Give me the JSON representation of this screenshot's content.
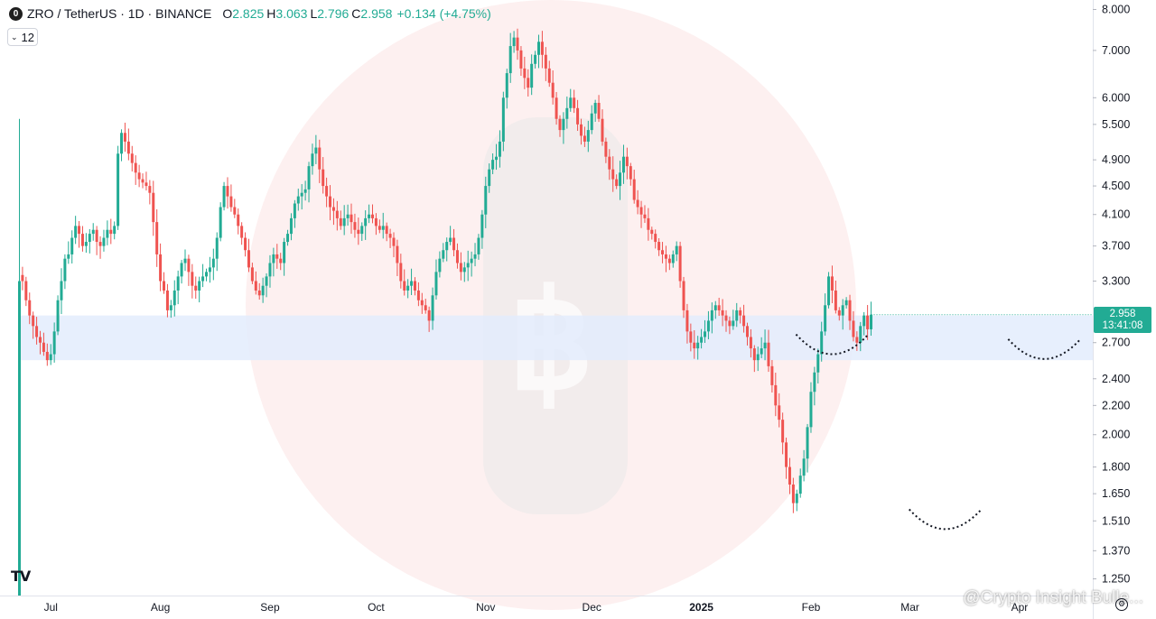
{
  "header": {
    "logo_icon": "zro-logo-icon",
    "title": "ZRO / TetherUS · 1D · BINANCE",
    "ohlc": [
      {
        "label": "O",
        "value": "2.825"
      },
      {
        "label": "H",
        "value": "3.063"
      },
      {
        "label": "L",
        "value": "2.796"
      },
      {
        "label": "C",
        "value": "2.958"
      }
    ],
    "change": "+0.134 (+4.75%)"
  },
  "indicator": {
    "value": "12",
    "icon": "chevron-down-icon"
  },
  "price_tag": {
    "price": "2.958",
    "countdown": "13:41:08"
  },
  "watermark": "@Crypto Insight Bulle...",
  "brand_logo": "TV",
  "colors": {
    "up": "#22ab94",
    "down": "#ef5350",
    "support_zone": "#e3ecfd",
    "circle": "#fbe4e4"
  },
  "chart_data": {
    "type": "candlestick",
    "scale": "log",
    "y_ticks": [
      "8.000",
      "7.000",
      "6.000",
      "5.500",
      "4.900",
      "4.500",
      "4.100",
      "3.700",
      "3.300",
      "2.700",
      "2.400",
      "2.200",
      "2.000",
      "1.800",
      "1.650",
      "1.510",
      "1.370",
      "1.250"
    ],
    "x_ticks": [
      {
        "label": "Jul",
        "bold": false
      },
      {
        "label": "Aug",
        "bold": false
      },
      {
        "label": "Sep",
        "bold": false
      },
      {
        "label": "Oct",
        "bold": false
      },
      {
        "label": "Nov",
        "bold": false
      },
      {
        "label": "Dec",
        "bold": false
      },
      {
        "label": "2025",
        "bold": true
      },
      {
        "label": "Feb",
        "bold": false
      },
      {
        "label": "Mar",
        "bold": false
      },
      {
        "label": "Apr",
        "bold": false
      }
    ],
    "support_zone": [
      2.55,
      2.95
    ],
    "annotations": [
      {
        "type": "arc-bottom",
        "date": "2025-02-06",
        "price": 2.6
      },
      {
        "type": "arc-bottom",
        "date": "2025-03-10",
        "price": 1.47
      },
      {
        "type": "arc-bottom",
        "date": "2025-04-07",
        "price": 2.56
      }
    ],
    "closes": [
      3.3,
      3.1,
      2.95,
      2.85,
      2.75,
      2.7,
      2.62,
      2.55,
      2.6,
      2.8,
      3.1,
      3.3,
      3.55,
      3.6,
      3.8,
      3.95,
      3.85,
      3.7,
      3.75,
      3.85,
      3.9,
      3.75,
      3.7,
      3.8,
      3.9,
      3.85,
      3.95,
      5.0,
      5.35,
      5.2,
      5.0,
      4.85,
      4.7,
      4.6,
      4.55,
      4.5,
      4.4,
      4.0,
      3.6,
      3.3,
      3.2,
      3.0,
      3.05,
      3.2,
      3.35,
      3.5,
      3.55,
      3.4,
      3.25,
      3.2,
      3.3,
      3.35,
      3.4,
      3.45,
      3.55,
      3.8,
      4.2,
      4.5,
      4.35,
      4.2,
      4.1,
      3.95,
      3.8,
      3.65,
      3.45,
      3.3,
      3.2,
      3.15,
      3.25,
      3.35,
      3.5,
      3.6,
      3.55,
      3.5,
      3.75,
      3.85,
      4.05,
      4.25,
      4.35,
      4.4,
      4.45,
      4.8,
      5.0,
      5.1,
      4.75,
      4.5,
      4.35,
      4.2,
      4.15,
      4.05,
      3.95,
      4.05,
      4.1,
      4.0,
      3.9,
      3.85,
      3.95,
      4.05,
      4.1,
      4.05,
      3.95,
      3.9,
      3.95,
      3.85,
      3.8,
      3.7,
      3.5,
      3.3,
      3.2,
      3.25,
      3.3,
      3.2,
      3.1,
      3.05,
      3.0,
      2.9,
      3.15,
      3.4,
      3.55,
      3.65,
      3.75,
      3.8,
      3.65,
      3.5,
      3.4,
      3.45,
      3.5,
      3.55,
      3.6,
      3.8,
      4.1,
      4.5,
      4.75,
      4.9,
      4.95,
      5.2,
      6.0,
      6.5,
      7.1,
      7.3,
      7.0,
      6.6,
      6.4,
      6.2,
      6.7,
      6.9,
      7.2,
      6.9,
      6.6,
      6.3,
      6.0,
      5.6,
      5.4,
      5.6,
      5.8,
      6.0,
      5.8,
      5.5,
      5.3,
      5.2,
      5.4,
      5.7,
      5.9,
      5.6,
      5.2,
      4.95,
      4.75,
      4.6,
      4.5,
      4.7,
      4.95,
      4.8,
      4.6,
      4.3,
      4.2,
      4.1,
      4.05,
      3.9,
      3.85,
      3.75,
      3.65,
      3.6,
      3.55,
      3.5,
      3.6,
      3.7,
      3.3,
      3.0,
      2.8,
      2.7,
      2.65,
      2.7,
      2.75,
      2.8,
      2.9,
      3.0,
      3.05,
      3.0,
      2.95,
      2.9,
      2.85,
      2.9,
      3.0,
      2.95,
      2.85,
      2.75,
      2.65,
      2.55,
      2.6,
      2.65,
      2.7,
      2.5,
      2.35,
      2.2,
      2.1,
      1.95,
      1.8,
      1.7,
      1.6,
      1.65,
      1.75,
      1.85,
      2.05,
      2.3,
      2.45,
      2.6,
      2.8,
      3.05,
      3.35,
      3.2,
      3.0,
      2.95,
      3.05,
      3.1,
      2.9,
      2.75,
      2.7,
      2.85,
      2.95,
      2.82,
      2.958
    ]
  }
}
